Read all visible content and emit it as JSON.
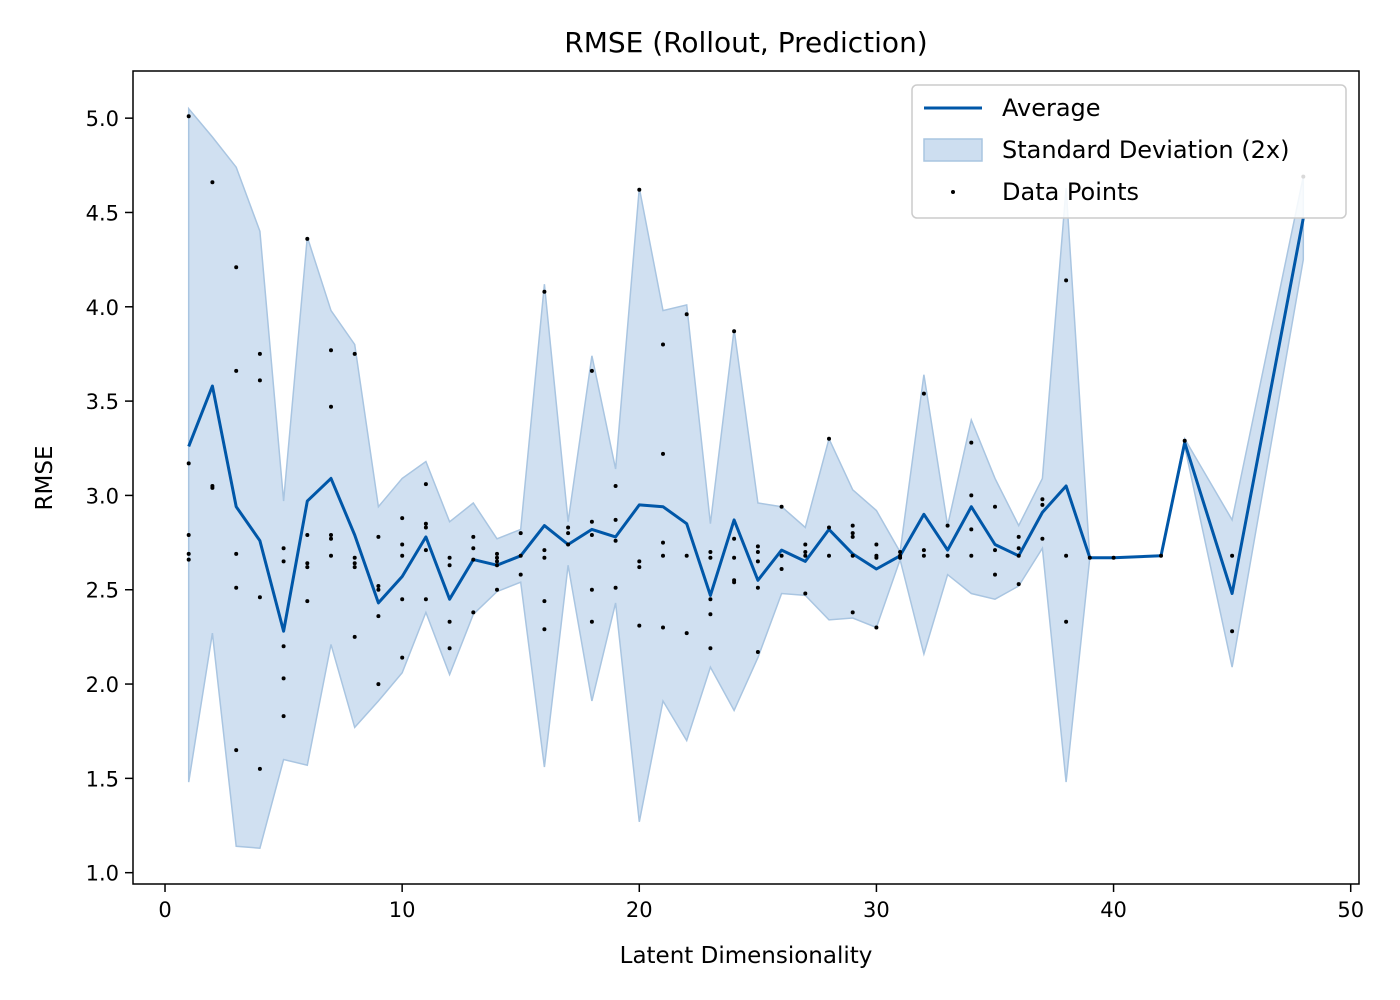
{
  "chart_data": {
    "type": "line",
    "title": "RMSE (Rollout, Prediction)",
    "xlabel": "Latent Dimensionality",
    "ylabel": "RMSE",
    "xlim": [
      -1.35,
      50.35
    ],
    "ylim": [
      0.94,
      5.25
    ],
    "xticks": [
      0,
      10,
      20,
      30,
      40,
      50
    ],
    "yticks": [
      1.0,
      1.5,
      2.0,
      2.5,
      3.0,
      3.5,
      4.0,
      4.5,
      5.0
    ],
    "xtick_labels": [
      "0",
      "10",
      "20",
      "30",
      "40",
      "50"
    ],
    "ytick_labels": [
      "1.0",
      "1.5",
      "2.0",
      "2.5",
      "3.0",
      "3.5",
      "4.0",
      "4.5",
      "5.0"
    ],
    "grid": false,
    "legend_position": "top-right",
    "colors": {
      "line": "#0057a8",
      "band_fill": "#cddef0",
      "band_edge": "#a9c5e1",
      "points": "#000000"
    },
    "legend": [
      {
        "label": "Average",
        "kind": "line"
      },
      {
        "label": "Standard Deviation (2x)",
        "kind": "patch"
      },
      {
        "label": "Data Points",
        "kind": "scatter"
      }
    ],
    "series": [
      {
        "name": "Average",
        "x": [
          1,
          2,
          3,
          4,
          5,
          6,
          7,
          8,
          9,
          10,
          11,
          12,
          13,
          14,
          15,
          16,
          17,
          18,
          19,
          20,
          21,
          22,
          23,
          24,
          25,
          26,
          27,
          28,
          29,
          30,
          31,
          32,
          33,
          34,
          35,
          36,
          37,
          38,
          39,
          40,
          42,
          43,
          45,
          48
        ],
        "y": [
          3.26,
          3.58,
          2.94,
          2.76,
          2.28,
          2.97,
          3.09,
          2.79,
          2.43,
          2.57,
          2.78,
          2.45,
          2.66,
          2.63,
          2.68,
          2.84,
          2.74,
          2.82,
          2.78,
          2.95,
          2.94,
          2.85,
          2.47,
          2.87,
          2.55,
          2.71,
          2.65,
          2.82,
          2.69,
          2.61,
          2.68,
          2.9,
          2.71,
          2.94,
          2.74,
          2.68,
          2.91,
          3.05,
          2.67,
          2.67,
          2.68,
          3.28,
          2.48,
          4.47
        ]
      },
      {
        "name": "Standard Deviation (2x)",
        "x": [
          1,
          2,
          3,
          4,
          5,
          6,
          7,
          8,
          9,
          10,
          11,
          12,
          13,
          14,
          15,
          16,
          17,
          18,
          19,
          20,
          21,
          22,
          23,
          24,
          25,
          26,
          27,
          28,
          29,
          30,
          31,
          32,
          33,
          34,
          35,
          36,
          37,
          38,
          39,
          40,
          42,
          43,
          45,
          48
        ],
        "upper": [
          5.05,
          4.9,
          4.74,
          4.4,
          2.97,
          4.37,
          3.98,
          3.8,
          2.94,
          3.09,
          3.18,
          2.86,
          2.96,
          2.77,
          2.82,
          4.12,
          2.86,
          3.74,
          3.14,
          4.63,
          3.98,
          4.01,
          2.85,
          3.88,
          2.96,
          2.94,
          2.83,
          3.3,
          3.03,
          2.92,
          2.7,
          3.64,
          2.84,
          3.4,
          3.09,
          2.84,
          3.09,
          4.63,
          2.67,
          2.67,
          2.68,
          3.3,
          2.87,
          4.69
        ],
        "lower": [
          1.48,
          2.27,
          1.14,
          1.13,
          1.6,
          1.57,
          2.21,
          1.77,
          1.91,
          2.06,
          2.38,
          2.05,
          2.37,
          2.49,
          2.54,
          1.56,
          2.63,
          1.91,
          2.43,
          1.27,
          1.91,
          1.7,
          2.09,
          1.86,
          2.14,
          2.48,
          2.47,
          2.34,
          2.35,
          2.3,
          2.66,
          2.16,
          2.58,
          2.48,
          2.45,
          2.52,
          2.72,
          1.48,
          2.67,
          2.67,
          2.68,
          3.26,
          2.09,
          4.25
        ]
      },
      {
        "name": "Data Points",
        "points": [
          [
            1,
            5.01
          ],
          [
            1,
            3.17
          ],
          [
            1,
            2.79
          ],
          [
            1,
            2.69
          ],
          [
            1,
            2.66
          ],
          [
            2,
            4.66
          ],
          [
            2,
            3.05
          ],
          [
            2,
            3.04
          ],
          [
            3,
            4.21
          ],
          [
            3,
            3.66
          ],
          [
            3,
            2.69
          ],
          [
            3,
            2.51
          ],
          [
            3,
            1.65
          ],
          [
            4,
            3.75
          ],
          [
            4,
            3.61
          ],
          [
            4,
            2.46
          ],
          [
            4,
            1.55
          ],
          [
            5,
            2.72
          ],
          [
            5,
            2.65
          ],
          [
            5,
            2.2
          ],
          [
            5,
            2.03
          ],
          [
            5,
            1.83
          ],
          [
            6,
            4.36
          ],
          [
            6,
            2.79
          ],
          [
            6,
            2.64
          ],
          [
            6,
            2.62
          ],
          [
            6,
            2.44
          ],
          [
            7,
            3.77
          ],
          [
            7,
            3.47
          ],
          [
            7,
            2.79
          ],
          [
            7,
            2.77
          ],
          [
            7,
            2.68
          ],
          [
            8,
            3.75
          ],
          [
            8,
            2.67
          ],
          [
            8,
            2.64
          ],
          [
            8,
            2.62
          ],
          [
            8,
            2.25
          ],
          [
            9,
            2.78
          ],
          [
            9,
            2.52
          ],
          [
            9,
            2.5
          ],
          [
            9,
            2.36
          ],
          [
            9,
            2.0
          ],
          [
            10,
            2.88
          ],
          [
            10,
            2.74
          ],
          [
            10,
            2.68
          ],
          [
            10,
            2.45
          ],
          [
            10,
            2.14
          ],
          [
            11,
            3.06
          ],
          [
            11,
            2.85
          ],
          [
            11,
            2.83
          ],
          [
            11,
            2.71
          ],
          [
            11,
            2.45
          ],
          [
            12,
            2.67
          ],
          [
            12,
            2.63
          ],
          [
            12,
            2.33
          ],
          [
            12,
            2.19
          ],
          [
            13,
            2.78
          ],
          [
            13,
            2.72
          ],
          [
            13,
            2.66
          ],
          [
            13,
            2.38
          ],
          [
            14,
            2.69
          ],
          [
            14,
            2.67
          ],
          [
            14,
            2.65
          ],
          [
            14,
            2.63
          ],
          [
            14,
            2.5
          ],
          [
            15,
            2.8
          ],
          [
            15,
            2.68
          ],
          [
            15,
            2.58
          ],
          [
            16,
            4.08
          ],
          [
            16,
            2.71
          ],
          [
            16,
            2.67
          ],
          [
            16,
            2.44
          ],
          [
            16,
            2.29
          ],
          [
            17,
            2.83
          ],
          [
            17,
            2.8
          ],
          [
            17,
            2.74
          ],
          [
            18,
            3.66
          ],
          [
            18,
            2.86
          ],
          [
            18,
            2.79
          ],
          [
            18,
            2.5
          ],
          [
            18,
            2.33
          ],
          [
            19,
            3.05
          ],
          [
            19,
            2.87
          ],
          [
            19,
            2.76
          ],
          [
            19,
            2.51
          ],
          [
            20,
            4.62
          ],
          [
            20,
            2.65
          ],
          [
            20,
            2.62
          ],
          [
            20,
            2.31
          ],
          [
            21,
            3.8
          ],
          [
            21,
            3.22
          ],
          [
            21,
            2.75
          ],
          [
            21,
            2.68
          ],
          [
            21,
            2.3
          ],
          [
            22,
            3.96
          ],
          [
            22,
            2.68
          ],
          [
            22,
            2.27
          ],
          [
            23,
            2.7
          ],
          [
            23,
            2.67
          ],
          [
            23,
            2.45
          ],
          [
            23,
            2.37
          ],
          [
            23,
            2.19
          ],
          [
            24,
            3.87
          ],
          [
            24,
            2.77
          ],
          [
            24,
            2.67
          ],
          [
            24,
            2.55
          ],
          [
            24,
            2.54
          ],
          [
            25,
            2.73
          ],
          [
            25,
            2.7
          ],
          [
            25,
            2.65
          ],
          [
            25,
            2.51
          ],
          [
            25,
            2.17
          ],
          [
            26,
            2.94
          ],
          [
            26,
            2.68
          ],
          [
            26,
            2.61
          ],
          [
            27,
            2.74
          ],
          [
            27,
            2.7
          ],
          [
            27,
            2.68
          ],
          [
            27,
            2.48
          ],
          [
            28,
            3.3
          ],
          [
            28,
            2.83
          ],
          [
            28,
            2.68
          ],
          [
            29,
            2.84
          ],
          [
            29,
            2.8
          ],
          [
            29,
            2.78
          ],
          [
            29,
            2.68
          ],
          [
            29,
            2.38
          ],
          [
            30,
            2.74
          ],
          [
            30,
            2.68
          ],
          [
            30,
            2.67
          ],
          [
            30,
            2.3
          ],
          [
            31,
            2.7
          ],
          [
            31,
            2.68
          ],
          [
            31,
            2.67
          ],
          [
            32,
            3.54
          ],
          [
            32,
            2.71
          ],
          [
            32,
            2.68
          ],
          [
            33,
            2.84
          ],
          [
            33,
            2.68
          ],
          [
            34,
            3.28
          ],
          [
            34,
            3.0
          ],
          [
            34,
            2.82
          ],
          [
            34,
            2.68
          ],
          [
            35,
            2.94
          ],
          [
            35,
            2.71
          ],
          [
            35,
            2.58
          ],
          [
            36,
            2.78
          ],
          [
            36,
            2.72
          ],
          [
            36,
            2.68
          ],
          [
            36,
            2.53
          ],
          [
            37,
            2.98
          ],
          [
            37,
            2.95
          ],
          [
            37,
            2.77
          ],
          [
            38,
            4.14
          ],
          [
            38,
            2.68
          ],
          [
            38,
            2.33
          ],
          [
            39,
            2.67
          ],
          [
            40,
            2.67
          ],
          [
            42,
            2.68
          ],
          [
            43,
            3.29
          ],
          [
            45,
            2.68
          ],
          [
            45,
            2.28
          ],
          [
            48,
            4.69
          ]
        ]
      }
    ]
  }
}
